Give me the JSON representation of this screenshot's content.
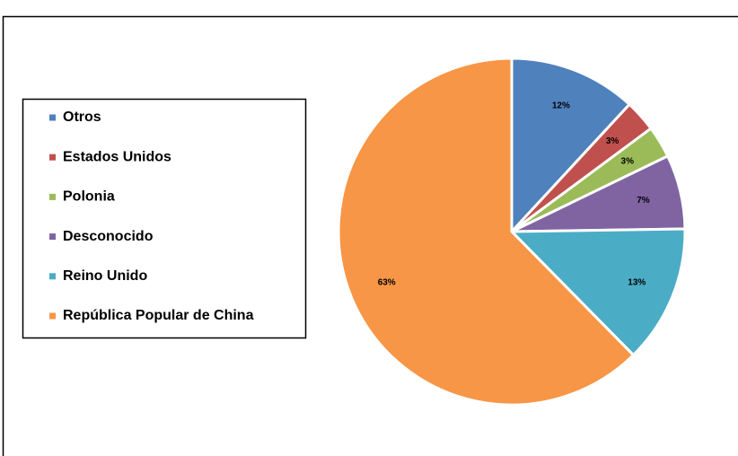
{
  "chart_data": {
    "type": "pie",
    "categories": [
      "Otros",
      "Estados Unidos",
      "Polonia",
      "Desconocido",
      "Reino Unido",
      "República Popular de China"
    ],
    "values": [
      12,
      3,
      3,
      7,
      13,
      63
    ],
    "value_labels": [
      "12%",
      "3%",
      "3%",
      "7%",
      "13%",
      "63%"
    ],
    "colors": [
      "#4f81bd",
      "#c0504d",
      "#9bbb59",
      "#8064a2",
      "#4bacc6",
      "#f79646"
    ],
    "legend": "left"
  }
}
